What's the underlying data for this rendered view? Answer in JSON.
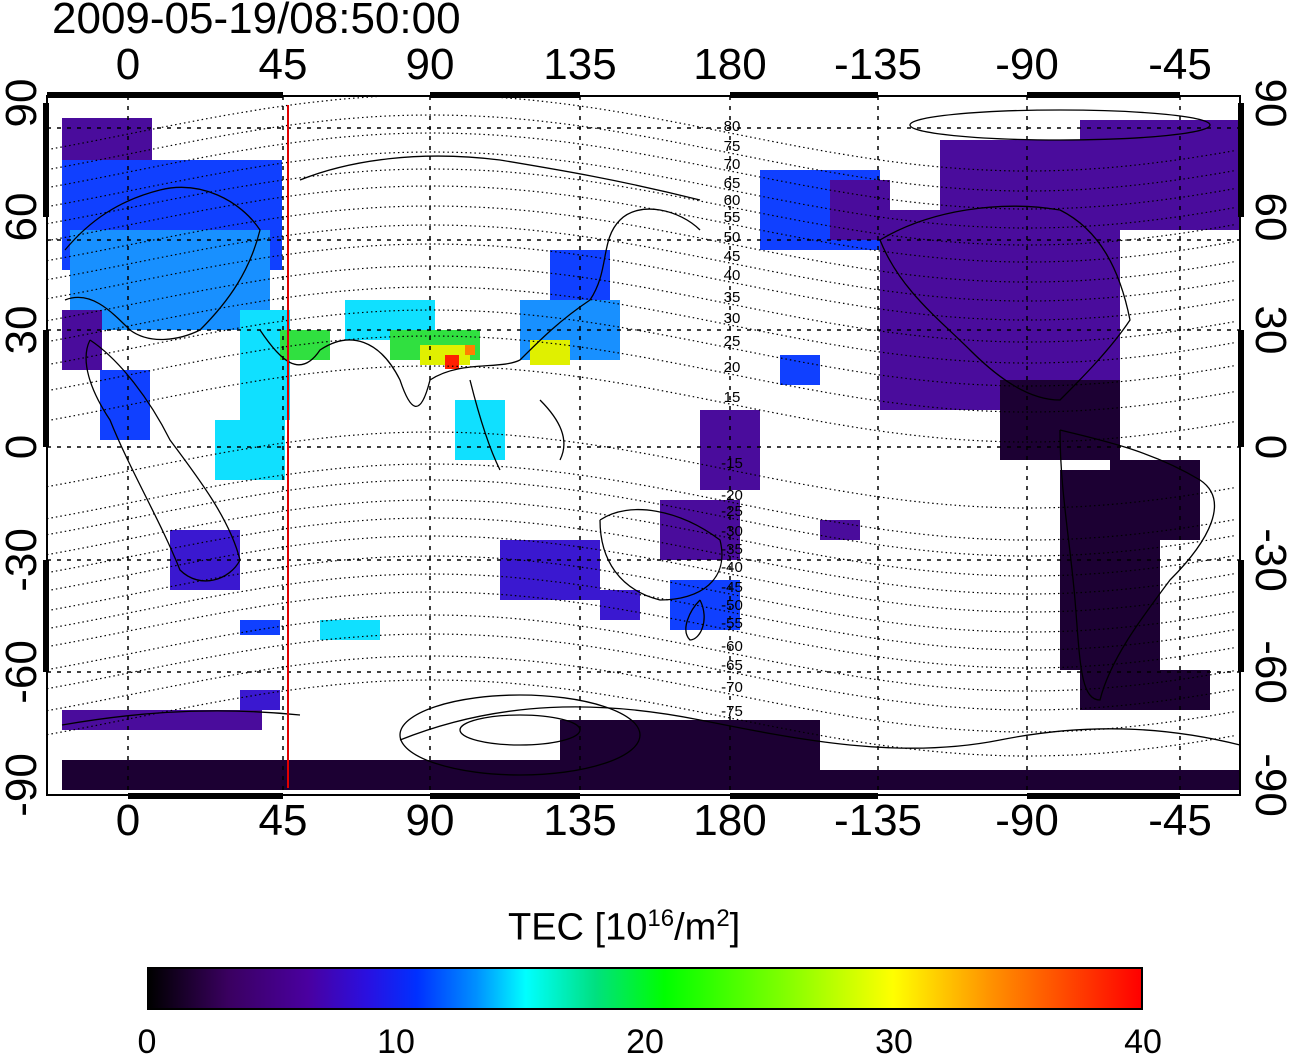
{
  "title": "2009-05-19/08:50:00",
  "map": {
    "lon_ticks": [
      "0",
      "45",
      "90",
      "135",
      "180",
      "-135",
      "-90",
      "-45"
    ],
    "lat_ticks": [
      "90",
      "60",
      "30",
      "0",
      "-30",
      "-60",
      "-90"
    ],
    "magnetic_latitude_labels": [
      "80",
      "75",
      "70",
      "65",
      "60",
      "55",
      "50",
      "45",
      "40",
      "35",
      "30",
      "25",
      "20",
      "15",
      "-15",
      "-20",
      "-25",
      "-30",
      "-35",
      "-40",
      "-45",
      "-50",
      "-55",
      "-60",
      "-65",
      "-70",
      "-75"
    ],
    "marker_line_color": "#e00000"
  },
  "colorbar": {
    "title_prefix": "TEC  [10",
    "title_exp": "16",
    "title_mid": "/m",
    "title_exp2": "2",
    "title_suffix": "]",
    "ticks": [
      "0",
      "10",
      "20",
      "30",
      "40"
    ],
    "range": [
      0,
      40
    ]
  }
}
